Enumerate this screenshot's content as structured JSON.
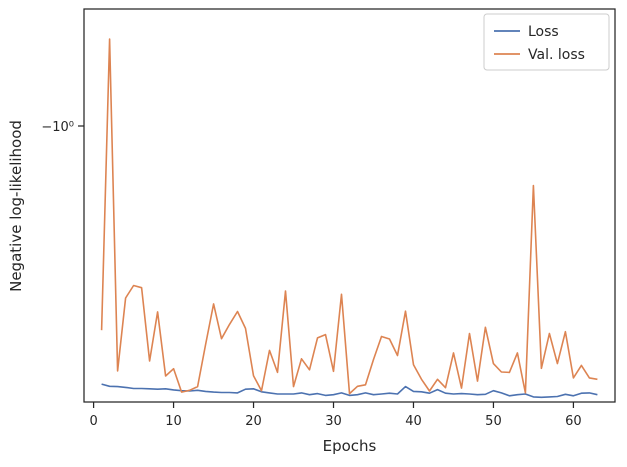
{
  "chart_data": {
    "type": "line",
    "xlabel": "Epochs",
    "ylabel": "Negative log-likelihood",
    "xlim": [
      -1.2,
      65.2
    ],
    "x_ticks": [
      0,
      10,
      20,
      30,
      40,
      50,
      60
    ],
    "yscale": "symlog",
    "y_tick_label": "−10⁰",
    "grid": false,
    "legend_position": "upper right",
    "x": [
      1,
      2,
      3,
      4,
      5,
      6,
      7,
      8,
      9,
      10,
      11,
      12,
      13,
      14,
      15,
      16,
      17,
      18,
      19,
      20,
      21,
      22,
      23,
      24,
      25,
      26,
      27,
      28,
      29,
      30,
      31,
      32,
      33,
      34,
      35,
      36,
      37,
      38,
      39,
      40,
      41,
      42,
      43,
      44,
      45,
      46,
      47,
      48,
      49,
      50,
      51,
      52,
      53,
      54,
      55,
      56,
      57,
      58,
      59,
      60,
      61,
      62,
      63
    ],
    "series": [
      {
        "name": "Loss",
        "color": "#4c72b0",
        "y": [
          0.058,
          0.052,
          0.051,
          0.049,
          0.046,
          0.046,
          0.045,
          0.044,
          0.045,
          0.042,
          0.04,
          0.039,
          0.041,
          0.038,
          0.036,
          0.035,
          0.035,
          0.034,
          0.044,
          0.045,
          0.037,
          0.034,
          0.031,
          0.031,
          0.031,
          0.034,
          0.029,
          0.032,
          0.027,
          0.029,
          0.034,
          0.027,
          0.029,
          0.034,
          0.029,
          0.031,
          0.033,
          0.031,
          0.051,
          0.038,
          0.037,
          0.033,
          0.043,
          0.033,
          0.031,
          0.032,
          0.031,
          0.029,
          0.03,
          0.04,
          0.034,
          0.026,
          0.029,
          0.031,
          0.023,
          0.022,
          0.023,
          0.024,
          0.03,
          0.026,
          0.033,
          0.034,
          0.029
        ]
      },
      {
        "name": "Val. loss",
        "color": "#dd8452",
        "y": [
          0.205,
          1.0,
          0.094,
          0.293,
          0.327,
          0.321,
          0.121,
          0.255,
          0.08,
          0.1,
          0.036,
          0.041,
          0.051,
          0.166,
          0.277,
          0.182,
          0.221,
          0.256,
          0.21,
          0.081,
          0.04,
          0.15,
          0.09,
          0.312,
          0.051,
          0.127,
          0.097,
          0.184,
          0.193,
          0.093,
          0.303,
          0.032,
          0.052,
          0.056,
          0.125,
          0.188,
          0.181,
          0.136,
          0.257,
          0.111,
          0.071,
          0.039,
          0.071,
          0.048,
          0.143,
          0.047,
          0.196,
          0.066,
          0.213,
          0.114,
          0.091,
          0.09,
          0.143,
          0.034,
          0.6,
          0.101,
          0.196,
          0.114,
          0.201,
          0.075,
          0.109,
          0.075,
          0.071
        ]
      }
    ]
  }
}
